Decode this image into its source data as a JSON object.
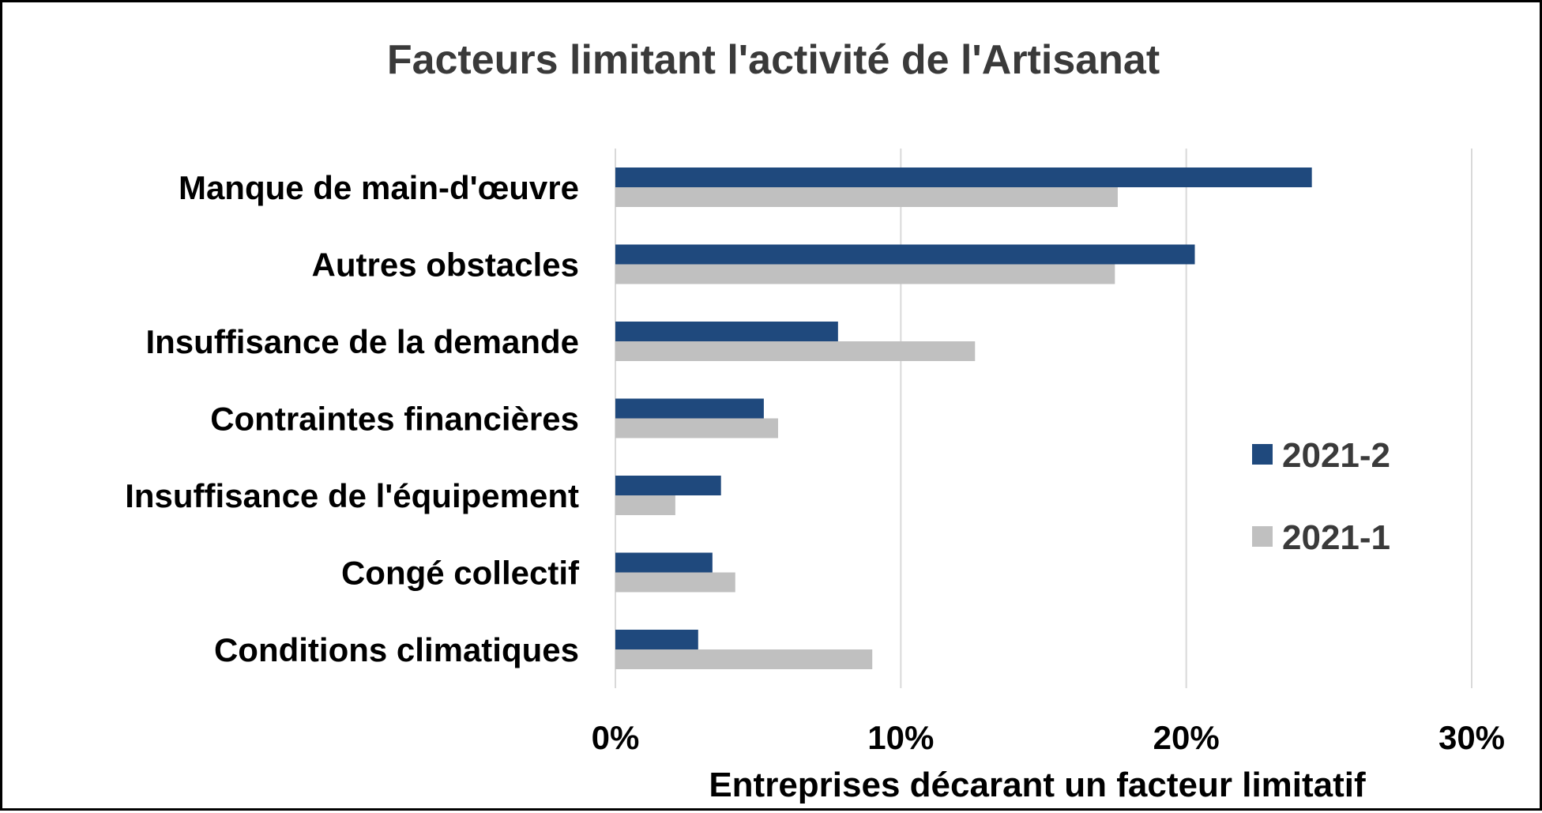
{
  "chart_data": {
    "type": "bar",
    "orientation": "horizontal",
    "title": "Facteurs limitant l'activité de l'Artisanat",
    "xlabel": "Entreprises décarant un facteur limitatif",
    "ylabel": "",
    "xlim": [
      0,
      30
    ],
    "x_ticks": [
      "0%",
      "10%",
      "20%",
      "30%"
    ],
    "x_tick_values": [
      0,
      10,
      20,
      30
    ],
    "grid": true,
    "legend_position": "right",
    "categories": [
      "Manque de main-d'œuvre",
      "Autres obstacles",
      "Insuffisance de la demande",
      "Contraintes financières",
      "Insuffisance de l'équipement",
      "Congé collectif",
      "Conditions climatiques"
    ],
    "series": [
      {
        "name": "2021-2",
        "color": "#1f497d",
        "values": [
          24.4,
          20.3,
          7.8,
          5.2,
          3.7,
          3.4,
          2.9
        ]
      },
      {
        "name": "2021-1",
        "color": "#c0c0c0",
        "values": [
          17.6,
          17.5,
          12.6,
          5.7,
          2.1,
          4.2,
          9.0
        ]
      }
    ]
  }
}
